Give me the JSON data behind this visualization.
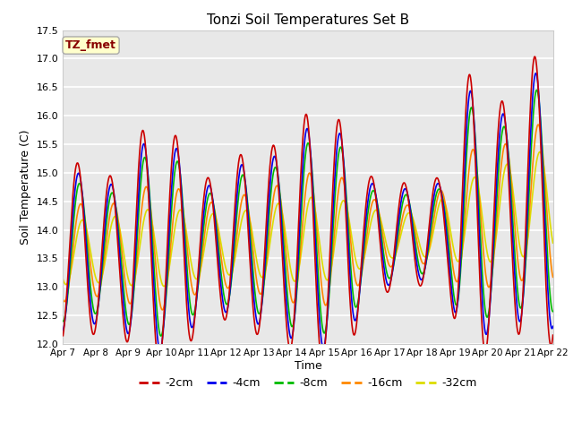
{
  "title": "Tonzi Soil Temperatures Set B",
  "xlabel": "Time",
  "ylabel": "Soil Temperature (C)",
  "ylim": [
    12.0,
    17.5
  ],
  "legend_label": "TZ_fmet",
  "legend_bg": "#ffffcc",
  "legend_border": "#aaaaaa",
  "series_colors": {
    "-2cm": "#cc0000",
    "-4cm": "#0000ee",
    "-8cm": "#00bb00",
    "-16cm": "#ff8800",
    "-32cm": "#dddd00"
  },
  "xtick_labels": [
    "Apr 7",
    "Apr 8",
    "Apr 9",
    "Apr 10",
    "Apr 11",
    "Apr 12",
    "Apr 13",
    "Apr 14",
    "Apr 15",
    "Apr 16",
    "Apr 17",
    "Apr 18",
    "Apr 19",
    "Apr 20",
    "Apr 21",
    "Apr 22"
  ],
  "ytick_values": [
    12.0,
    12.5,
    13.0,
    13.5,
    14.0,
    14.5,
    15.0,
    15.5,
    16.0,
    16.5,
    17.0,
    17.5
  ],
  "plot_bg": "#e8e8e8",
  "fig_bg": "#ffffff"
}
